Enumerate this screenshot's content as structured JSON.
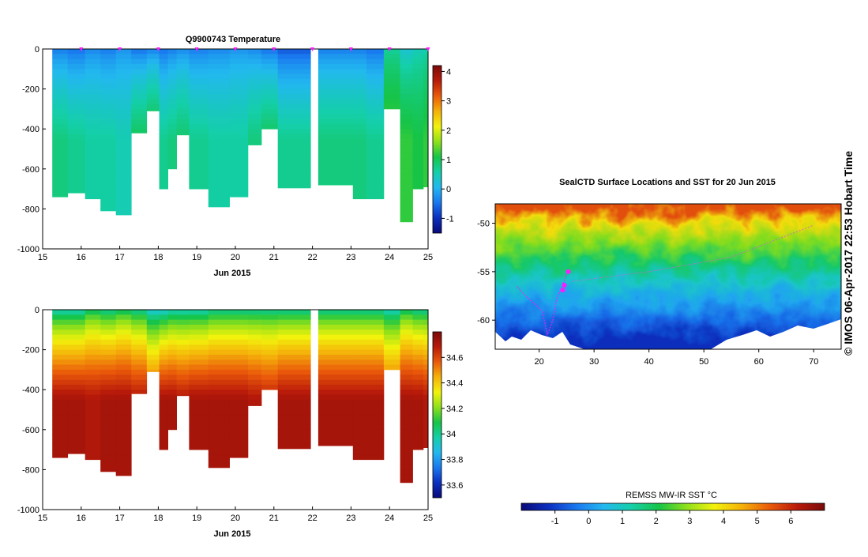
{
  "colors": {
    "sst_ramp": [
      "#0a0a78",
      "#0b2fbf",
      "#1a78ef",
      "#22b8ef",
      "#14cfa8",
      "#16c447",
      "#8fe01a",
      "#f2f20c",
      "#f5b10a",
      "#ea5a0a",
      "#b91a0a",
      "#7a0a0a"
    ],
    "track": "#ff1aff",
    "ice": "#ffffff"
  },
  "temperature_panel": {
    "title": "Q9900743  Temperature",
    "xlabel": "Jun 2015",
    "yticks": [
      "0",
      "-200",
      "-400",
      "-600",
      "-800",
      "-1000"
    ],
    "xticks": [
      "15",
      "16",
      "17",
      "18",
      "19",
      "20",
      "21",
      "22",
      "23",
      "24",
      "25"
    ],
    "colorbar_ticks": [
      "4",
      "3",
      "2",
      "1",
      "0",
      "-1"
    ]
  },
  "salinity_panel": {
    "xlabel": "Jun 2015",
    "yticks": [
      "0",
      "-200",
      "-400",
      "-600",
      "-800",
      "-1000"
    ],
    "xticks": [
      "15",
      "16",
      "17",
      "18",
      "19",
      "20",
      "21",
      "22",
      "23",
      "24",
      "25"
    ],
    "colorbar_ticks": [
      "34.6",
      "34.4",
      "34.2",
      "34",
      "33.8",
      "33.6"
    ]
  },
  "map_panel": {
    "title": "SealCTD Surface Locations and SST for 20 Jun 2015",
    "xticks": [
      "20",
      "30",
      "40",
      "50",
      "60",
      "70"
    ],
    "yticks": [
      "-50",
      "-55",
      "-60"
    ],
    "colorbar_label": "REMSS MW-IR SST °C",
    "colorbar_ticks": [
      "-1",
      "0",
      "1",
      "2",
      "3",
      "4",
      "5",
      "6"
    ]
  },
  "stamp": "© IMOS 06-Apr-2017 22:53 Hobart Time",
  "chart_data": [
    {
      "type": "heatmap",
      "title": "Q9900743  Temperature",
      "xlabel": "Jun 2015",
      "ylabel": "",
      "xlim": [
        15,
        25
      ],
      "ylim": [
        -1000,
        0
      ],
      "colorbar_range": [
        -1.5,
        4.2
      ],
      "profile_marker_days": [
        16,
        17,
        18,
        19,
        20,
        21,
        22,
        23,
        24,
        25
      ],
      "profiles": [
        {
          "day": 15.4,
          "max_depth": 740,
          "t_surface": -0.5,
          "t_deep": 0.8
        },
        {
          "day": 15.9,
          "max_depth": 720,
          "t_surface": -0.6,
          "t_deep": 0.7
        },
        {
          "day": 16.3,
          "max_depth": 750,
          "t_surface": -0.4,
          "t_deep": 0.6
        },
        {
          "day": 16.7,
          "max_depth": 810,
          "t_surface": -0.5,
          "t_deep": 0.6
        },
        {
          "day": 17.1,
          "max_depth": 830,
          "t_surface": -0.3,
          "t_deep": 0.5
        },
        {
          "day": 17.5,
          "max_depth": 420,
          "t_surface": -0.6,
          "t_deep": 1.0
        },
        {
          "day": 17.9,
          "max_depth": 310,
          "t_surface": -0.5,
          "t_deep": 1.2
        },
        {
          "day": 18.15,
          "max_depth": 700,
          "t_surface": -0.6,
          "t_deep": 0.7
        },
        {
          "day": 18.35,
          "max_depth": 600,
          "t_surface": -0.5,
          "t_deep": 0.8
        },
        {
          "day": 18.6,
          "max_depth": 430,
          "t_surface": -0.4,
          "t_deep": 0.9
        },
        {
          "day": 19.0,
          "max_depth": 700,
          "t_surface": -0.5,
          "t_deep": 0.7
        },
        {
          "day": 19.6,
          "max_depth": 790,
          "t_surface": -0.4,
          "t_deep": 0.6
        },
        {
          "day": 20.1,
          "max_depth": 740,
          "t_surface": -0.3,
          "t_deep": 0.6
        },
        {
          "day": 20.55,
          "max_depth": 480,
          "t_surface": -0.4,
          "t_deep": 0.8
        },
        {
          "day": 20.8,
          "max_depth": 400,
          "t_surface": -0.6,
          "t_deep": 1.0
        },
        {
          "day": 21.4,
          "max_depth": 695,
          "t_surface": -0.8,
          "t_deep": 0.7
        },
        {
          "day": 22.9,
          "max_depth": 680,
          "t_surface": -0.5,
          "t_deep": 0.8
        },
        {
          "day": 23.2,
          "max_depth": 750,
          "t_surface": -0.5,
          "t_deep": 0.8
        },
        {
          "day": 23.6,
          "max_depth": 750,
          "t_surface": -0.6,
          "t_deep": 0.7
        },
        {
          "day": 24.1,
          "max_depth": 300,
          "t_surface": 0.6,
          "t_deep": 1.3
        },
        {
          "day": 24.45,
          "max_depth": 865,
          "t_surface": 0.2,
          "t_deep": 1.2
        },
        {
          "day": 24.75,
          "max_depth": 700,
          "t_surface": 0.4,
          "t_deep": 1.1
        },
        {
          "day": 25.0,
          "max_depth": 690,
          "t_surface": 0.5,
          "t_deep": 1.2
        }
      ]
    },
    {
      "type": "heatmap",
      "title": "",
      "xlabel": "Jun 2015",
      "ylabel": "",
      "xlim": [
        15,
        25
      ],
      "ylim": [
        -1000,
        0
      ],
      "colorbar_range": [
        33.5,
        34.8
      ],
      "profiles": [
        {
          "day": 15.4,
          "max_depth": 740,
          "s_surface": 33.9,
          "s_deep": 34.72
        },
        {
          "day": 15.9,
          "max_depth": 720,
          "s_surface": 33.9,
          "s_deep": 34.72
        },
        {
          "day": 16.3,
          "max_depth": 750,
          "s_surface": 34.0,
          "s_deep": 34.7
        },
        {
          "day": 16.7,
          "max_depth": 810,
          "s_surface": 33.95,
          "s_deep": 34.72
        },
        {
          "day": 17.1,
          "max_depth": 830,
          "s_surface": 34.0,
          "s_deep": 34.72
        },
        {
          "day": 17.5,
          "max_depth": 420,
          "s_surface": 33.95,
          "s_deep": 34.7
        },
        {
          "day": 17.9,
          "max_depth": 310,
          "s_surface": 33.85,
          "s_deep": 34.62
        },
        {
          "day": 18.15,
          "max_depth": 700,
          "s_surface": 33.85,
          "s_deep": 34.72
        },
        {
          "day": 18.35,
          "max_depth": 600,
          "s_surface": 33.9,
          "s_deep": 34.72
        },
        {
          "day": 18.6,
          "max_depth": 430,
          "s_surface": 33.9,
          "s_deep": 34.7
        },
        {
          "day": 19.0,
          "max_depth": 700,
          "s_surface": 33.9,
          "s_deep": 34.72
        },
        {
          "day": 19.6,
          "max_depth": 790,
          "s_surface": 33.95,
          "s_deep": 34.72
        },
        {
          "day": 20.1,
          "max_depth": 740,
          "s_surface": 33.95,
          "s_deep": 34.72
        },
        {
          "day": 20.55,
          "max_depth": 480,
          "s_surface": 33.95,
          "s_deep": 34.7
        },
        {
          "day": 20.8,
          "max_depth": 400,
          "s_surface": 33.95,
          "s_deep": 34.68
        },
        {
          "day": 21.4,
          "max_depth": 695,
          "s_surface": 33.95,
          "s_deep": 34.72
        },
        {
          "day": 22.9,
          "max_depth": 680,
          "s_surface": 33.95,
          "s_deep": 34.72
        },
        {
          "day": 23.2,
          "max_depth": 750,
          "s_surface": 33.95,
          "s_deep": 34.72
        },
        {
          "day": 23.6,
          "max_depth": 750,
          "s_surface": 33.95,
          "s_deep": 34.72
        },
        {
          "day": 24.1,
          "max_depth": 300,
          "s_surface": 33.9,
          "s_deep": 34.62
        },
        {
          "day": 24.45,
          "max_depth": 865,
          "s_surface": 34.0,
          "s_deep": 34.72
        },
        {
          "day": 24.75,
          "max_depth": 700,
          "s_surface": 33.95,
          "s_deep": 34.72
        },
        {
          "day": 25.0,
          "max_depth": 690,
          "s_surface": 33.95,
          "s_deep": 34.7
        }
      ]
    },
    {
      "type": "heatmap",
      "title": "SealCTD Surface Locations and SST for 20 Jun 2015",
      "xlabel": "",
      "ylabel": "",
      "xlim": [
        12,
        75
      ],
      "ylim": [
        -63,
        -48
      ],
      "colorbar_label": "REMSS MW-IR SST °C",
      "colorbar_range": [
        -2,
        7
      ],
      "sst_by_latitude": [
        {
          "lat": -48.5,
          "sst": 5.5
        },
        {
          "lat": -50,
          "sst": 4.0
        },
        {
          "lat": -52,
          "sst": 2.8
        },
        {
          "lat": -54,
          "sst": 1.8
        },
        {
          "lat": -56,
          "sst": 0.9
        },
        {
          "lat": -58,
          "sst": 0.2
        },
        {
          "lat": -60,
          "sst": -0.5
        },
        {
          "lat": -62,
          "sst": -1.2
        }
      ],
      "seal_track": [
        {
          "lon": 16.0,
          "lat": -56.5
        },
        {
          "lon": 17.5,
          "lat": -57.5
        },
        {
          "lon": 19.0,
          "lat": -58.2
        },
        {
          "lon": 20.5,
          "lat": -59.0
        },
        {
          "lon": 21.0,
          "lat": -60.2
        },
        {
          "lon": 21.5,
          "lat": -61.5
        },
        {
          "lon": 22.5,
          "lat": -60.0
        },
        {
          "lon": 23.2,
          "lat": -57.8
        },
        {
          "lon": 24.0,
          "lat": -56.8
        },
        {
          "lon": 25.0,
          "lat": -55.2
        }
      ],
      "recent_locations": [
        {
          "lon": 24.3,
          "lat": -56.9
        },
        {
          "lon": 24.6,
          "lat": -56.4
        },
        {
          "lon": 25.3,
          "lat": -55.0
        }
      ],
      "other_track": [
        {
          "lon": 26,
          "lat": -56.0
        },
        {
          "lon": 40,
          "lat": -55.0
        },
        {
          "lon": 55,
          "lat": -53.5
        },
        {
          "lon": 70,
          "lat": -50.2
        }
      ]
    }
  ]
}
